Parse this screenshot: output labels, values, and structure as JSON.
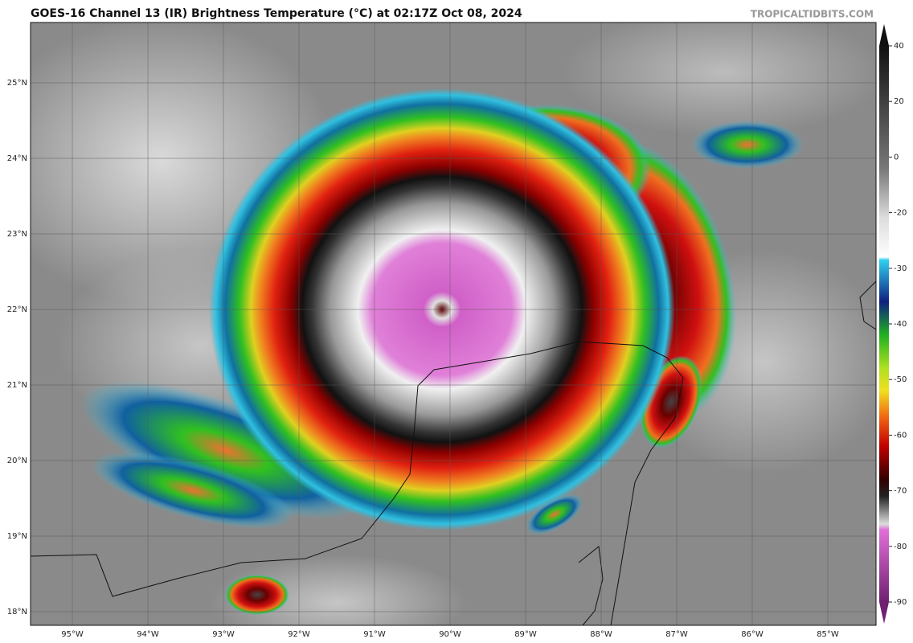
{
  "header": {
    "title": "GOES-16 Channel 13 (IR) Brightness Temperature (°C) at 02:17Z Oct 08, 2024",
    "site": "TROPICALTIDBITS.COM"
  },
  "map": {
    "lat_labels": [
      "25°N",
      "24°N",
      "23°N",
      "22°N",
      "21°N",
      "20°N",
      "19°N",
      "18°N"
    ],
    "lon_labels": [
      "95°W",
      "94°W",
      "93°W",
      "92°W",
      "91°W",
      "90°W",
      "89°W",
      "88°W",
      "87°W",
      "86°W",
      "85°W"
    ]
  },
  "colorbar": {
    "ticks": [
      40,
      20,
      0,
      -20,
      -30,
      -40,
      -50,
      -60,
      -70,
      -80,
      -90
    ]
  }
}
